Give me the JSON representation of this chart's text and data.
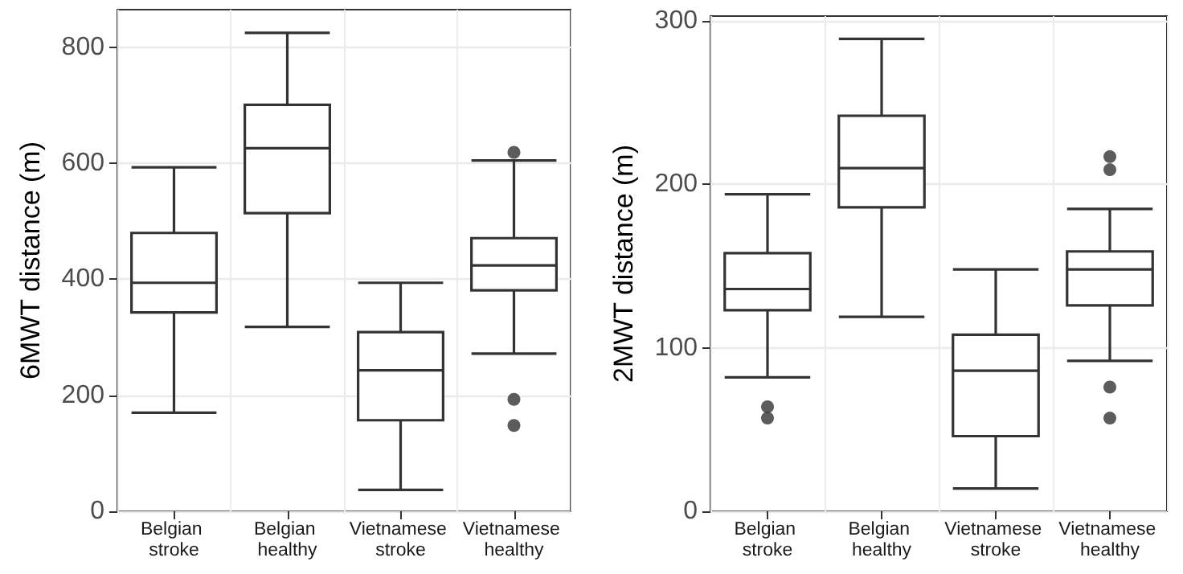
{
  "chart_data": [
    {
      "type": "box",
      "ylabel": "6MWT distance (m)",
      "categories": [
        "Belgian stroke",
        "Belgian healthy",
        "Vietnamese stroke",
        "Vietnamese healthy"
      ],
      "ylim": [
        0,
        865
      ],
      "yticks": [
        0,
        200,
        400,
        600,
        800
      ],
      "grid": true,
      "marker": "circle",
      "series": [
        {
          "color": "#333333",
          "boxes": [
            {
              "low": 170,
              "q1": 343,
              "median": 394,
              "q3": 480,
              "high": 593
            },
            {
              "low": 318,
              "q1": 514,
              "median": 626,
              "q3": 701,
              "high": 825
            },
            {
              "low": 37,
              "q1": 157,
              "median": 243,
              "q3": 309,
              "high": 394
            },
            {
              "low": 272,
              "q1": 381,
              "median": 424,
              "q3": 471,
              "high": 605,
              "outliers": [
                619,
                193,
                148
              ]
            }
          ]
        }
      ]
    },
    {
      "type": "box",
      "ylabel": "2MWT distance (m)",
      "categories": [
        "Belgian stroke",
        "Belgian healthy",
        "Vietnamese stroke",
        "Vietnamese healthy"
      ],
      "ylim": [
        0,
        303
      ],
      "yticks": [
        0,
        100,
        200,
        300
      ],
      "grid": true,
      "marker": "circle",
      "series": [
        {
          "color": "#333333",
          "boxes": [
            {
              "low": 82,
              "q1": 123,
              "median": 136,
              "q3": 158,
              "high": 194,
              "outliers": [
                64,
                57
              ]
            },
            {
              "low": 119,
              "q1": 186,
              "median": 210,
              "q3": 242,
              "high": 289
            },
            {
              "low": 14,
              "q1": 46,
              "median": 86,
              "q3": 108,
              "high": 148
            },
            {
              "low": 92,
              "q1": 126,
              "median": 148,
              "q3": 159,
              "high": 185,
              "outliers": [
                217,
                209,
                76,
                57
              ]
            }
          ]
        }
      ]
    }
  ]
}
